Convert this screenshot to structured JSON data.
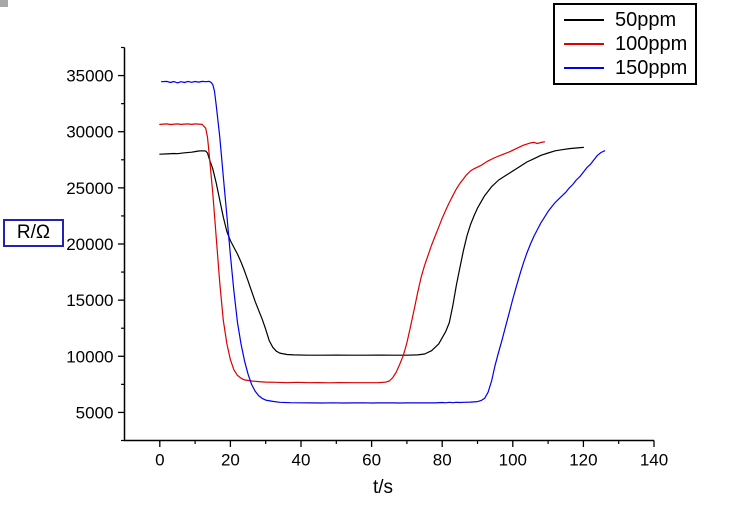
{
  "window": {
    "selection_handle_color": "#a8a8a8"
  },
  "accents": {
    "ylabel_box_border": "#2222b4",
    "legend_border": "#000000",
    "axis_color": "#000000",
    "background": "#ffffff"
  },
  "chart_data": {
    "type": "line",
    "title": "",
    "x_title": "t/s",
    "y_title": "R/Ω",
    "x_range": [
      -10,
      140
    ],
    "y_range": [
      2500,
      37500
    ],
    "x_major_ticks": [
      0,
      20,
      40,
      60,
      80,
      100,
      120,
      140
    ],
    "x_minor_ticks": [
      10,
      30,
      50,
      70,
      90,
      110,
      130
    ],
    "y_major_ticks": [
      5000,
      10000,
      15000,
      20000,
      25000,
      30000,
      35000
    ],
    "y_minor_ticks": [
      2500,
      7500,
      12500,
      17500,
      22500,
      27500,
      32500,
      37500
    ],
    "grid": false,
    "legend_position": "top-right",
    "series": [
      {
        "name": "50ppm",
        "color": "#000000",
        "points": [
          [
            0,
            28000
          ],
          [
            2,
            28020
          ],
          [
            4,
            28060
          ],
          [
            5,
            28040
          ],
          [
            7,
            28120
          ],
          [
            9,
            28180
          ],
          [
            10,
            28230
          ],
          [
            11,
            28280
          ],
          [
            12,
            28300
          ],
          [
            13,
            28280
          ],
          [
            13.5,
            28100
          ],
          [
            14,
            27600
          ],
          [
            15,
            26700
          ],
          [
            16,
            25400
          ],
          [
            17,
            23900
          ],
          [
            18,
            22400
          ],
          [
            19,
            21100
          ],
          [
            20,
            20300
          ],
          [
            21,
            19700
          ],
          [
            22,
            19100
          ],
          [
            23,
            18400
          ],
          [
            24,
            17600
          ],
          [
            25,
            16700
          ],
          [
            26,
            15800
          ],
          [
            27,
            14900
          ],
          [
            28,
            14100
          ],
          [
            29,
            13300
          ],
          [
            30,
            12400
          ],
          [
            31,
            11400
          ],
          [
            32,
            10800
          ],
          [
            33,
            10450
          ],
          [
            34,
            10280
          ],
          [
            36,
            10160
          ],
          [
            38,
            10120
          ],
          [
            42,
            10100
          ],
          [
            46,
            10100
          ],
          [
            50,
            10110
          ],
          [
            54,
            10100
          ],
          [
            58,
            10100
          ],
          [
            62,
            10110
          ],
          [
            66,
            10100
          ],
          [
            70,
            10100
          ],
          [
            73,
            10120
          ],
          [
            75,
            10200
          ],
          [
            77,
            10500
          ],
          [
            79,
            11100
          ],
          [
            81,
            12200
          ],
          [
            82,
            13000
          ],
          [
            83,
            14500
          ],
          [
            84,
            16300
          ],
          [
            85,
            17900
          ],
          [
            86,
            19400
          ],
          [
            87,
            20700
          ],
          [
            88,
            21700
          ],
          [
            89,
            22500
          ],
          [
            90,
            23200
          ],
          [
            92,
            24300
          ],
          [
            94,
            25100
          ],
          [
            96,
            25700
          ],
          [
            98,
            26100
          ],
          [
            100,
            26500
          ],
          [
            102,
            26900
          ],
          [
            104,
            27300
          ],
          [
            106,
            27600
          ],
          [
            108,
            27900
          ],
          [
            110,
            28100
          ],
          [
            112,
            28300
          ],
          [
            114,
            28400
          ],
          [
            116,
            28500
          ],
          [
            118,
            28550
          ],
          [
            120,
            28600
          ]
        ]
      },
      {
        "name": "100ppm",
        "color": "#dd0000",
        "points": [
          [
            0,
            30650
          ],
          [
            2,
            30700
          ],
          [
            3,
            30640
          ],
          [
            5,
            30700
          ],
          [
            6,
            30650
          ],
          [
            8,
            30700
          ],
          [
            9,
            30650
          ],
          [
            10,
            30700
          ],
          [
            11,
            30680
          ],
          [
            12,
            30650
          ],
          [
            13,
            30300
          ],
          [
            13.5,
            29500
          ],
          [
            14,
            28000
          ],
          [
            15,
            24500
          ],
          [
            16,
            20500
          ],
          [
            17,
            16500
          ],
          [
            18,
            13200
          ],
          [
            19,
            11100
          ],
          [
            20,
            9700
          ],
          [
            21,
            8800
          ],
          [
            22,
            8300
          ],
          [
            23,
            8050
          ],
          [
            24,
            7900
          ],
          [
            26,
            7800
          ],
          [
            28,
            7750
          ],
          [
            30,
            7700
          ],
          [
            33,
            7680
          ],
          [
            36,
            7650
          ],
          [
            39,
            7680
          ],
          [
            42,
            7650
          ],
          [
            45,
            7660
          ],
          [
            48,
            7640
          ],
          [
            51,
            7660
          ],
          [
            54,
            7650
          ],
          [
            57,
            7650
          ],
          [
            60,
            7650
          ],
          [
            62,
            7660
          ],
          [
            64,
            7700
          ],
          [
            65,
            7800
          ],
          [
            66,
            8100
          ],
          [
            67,
            8600
          ],
          [
            68,
            9300
          ],
          [
            69,
            10100
          ],
          [
            70,
            11200
          ],
          [
            71,
            12600
          ],
          [
            72,
            14100
          ],
          [
            73,
            15600
          ],
          [
            74,
            17000
          ],
          [
            75,
            18100
          ],
          [
            76,
            19000
          ],
          [
            77,
            19900
          ],
          [
            78,
            20700
          ],
          [
            79,
            21500
          ],
          [
            80,
            22300
          ],
          [
            81,
            23000
          ],
          [
            82,
            23700
          ],
          [
            83,
            24300
          ],
          [
            84,
            24900
          ],
          [
            85,
            25400
          ],
          [
            86,
            25800
          ],
          [
            87,
            26200
          ],
          [
            88,
            26500
          ],
          [
            89,
            26700
          ],
          [
            91,
            27000
          ],
          [
            93,
            27400
          ],
          [
            95,
            27700
          ],
          [
            97,
            27950
          ],
          [
            99,
            28200
          ],
          [
            101,
            28500
          ],
          [
            103,
            28800
          ],
          [
            105,
            29000
          ],
          [
            106,
            29050
          ],
          [
            107,
            28950
          ],
          [
            108,
            29050
          ],
          [
            109,
            29100
          ]
        ]
      },
      {
        "name": "150ppm",
        "color": "#0000ee",
        "points": [
          [
            0.5,
            34450
          ],
          [
            2,
            34480
          ],
          [
            3,
            34380
          ],
          [
            4,
            34470
          ],
          [
            5,
            34350
          ],
          [
            6,
            34450
          ],
          [
            7,
            34380
          ],
          [
            8,
            34480
          ],
          [
            9,
            34400
          ],
          [
            10,
            34470
          ],
          [
            11,
            34420
          ],
          [
            12,
            34480
          ],
          [
            13,
            34450
          ],
          [
            14,
            34480
          ],
          [
            14.5,
            34400
          ],
          [
            15,
            34200
          ],
          [
            15.5,
            33600
          ],
          [
            16,
            32300
          ],
          [
            17,
            29500
          ],
          [
            18,
            26000
          ],
          [
            19,
            22500
          ],
          [
            20,
            19000
          ],
          [
            21,
            15800
          ],
          [
            22,
            13000
          ],
          [
            23,
            11100
          ],
          [
            24,
            9600
          ],
          [
            25,
            8400
          ],
          [
            26,
            7500
          ],
          [
            27,
            6900
          ],
          [
            28,
            6500
          ],
          [
            29,
            6250
          ],
          [
            30,
            6100
          ],
          [
            32,
            5980
          ],
          [
            34,
            5900
          ],
          [
            37,
            5870
          ],
          [
            40,
            5860
          ],
          [
            43,
            5850
          ],
          [
            46,
            5840
          ],
          [
            49,
            5860
          ],
          [
            52,
            5840
          ],
          [
            55,
            5850
          ],
          [
            58,
            5860
          ],
          [
            60,
            5840
          ],
          [
            62,
            5850
          ],
          [
            64,
            5860
          ],
          [
            66,
            5850
          ],
          [
            68,
            5840
          ],
          [
            70,
            5850
          ],
          [
            72,
            5860
          ],
          [
            74,
            5850
          ],
          [
            76,
            5860
          ],
          [
            78,
            5850
          ],
          [
            80,
            5880
          ],
          [
            81,
            5860
          ],
          [
            82,
            5900
          ],
          [
            83,
            5870
          ],
          [
            84,
            5900
          ],
          [
            85,
            5880
          ],
          [
            86,
            5900
          ],
          [
            88,
            5920
          ],
          [
            90,
            5960
          ],
          [
            91,
            6050
          ],
          [
            92,
            6250
          ],
          [
            93,
            6800
          ],
          [
            94,
            7800
          ],
          [
            95,
            9200
          ],
          [
            96,
            10400
          ],
          [
            97,
            11500
          ],
          [
            98,
            12700
          ],
          [
            99,
            13900
          ],
          [
            100,
            15100
          ],
          [
            101,
            16200
          ],
          [
            102,
            17300
          ],
          [
            103,
            18300
          ],
          [
            104,
            19200
          ],
          [
            105,
            20000
          ],
          [
            106,
            20700
          ],
          [
            107,
            21300
          ],
          [
            108,
            21900
          ],
          [
            109,
            22400
          ],
          [
            110,
            22900
          ],
          [
            111,
            23300
          ],
          [
            112,
            23700
          ],
          [
            113,
            24000
          ],
          [
            114,
            24300
          ],
          [
            115,
            24600
          ],
          [
            116,
            25000
          ],
          [
            117,
            25300
          ],
          [
            118,
            25700
          ],
          [
            119,
            26000
          ],
          [
            120,
            26400
          ],
          [
            121,
            26800
          ],
          [
            122,
            27100
          ],
          [
            123,
            27500
          ],
          [
            124,
            27900
          ],
          [
            125,
            28150
          ],
          [
            126,
            28300
          ]
        ]
      }
    ]
  }
}
